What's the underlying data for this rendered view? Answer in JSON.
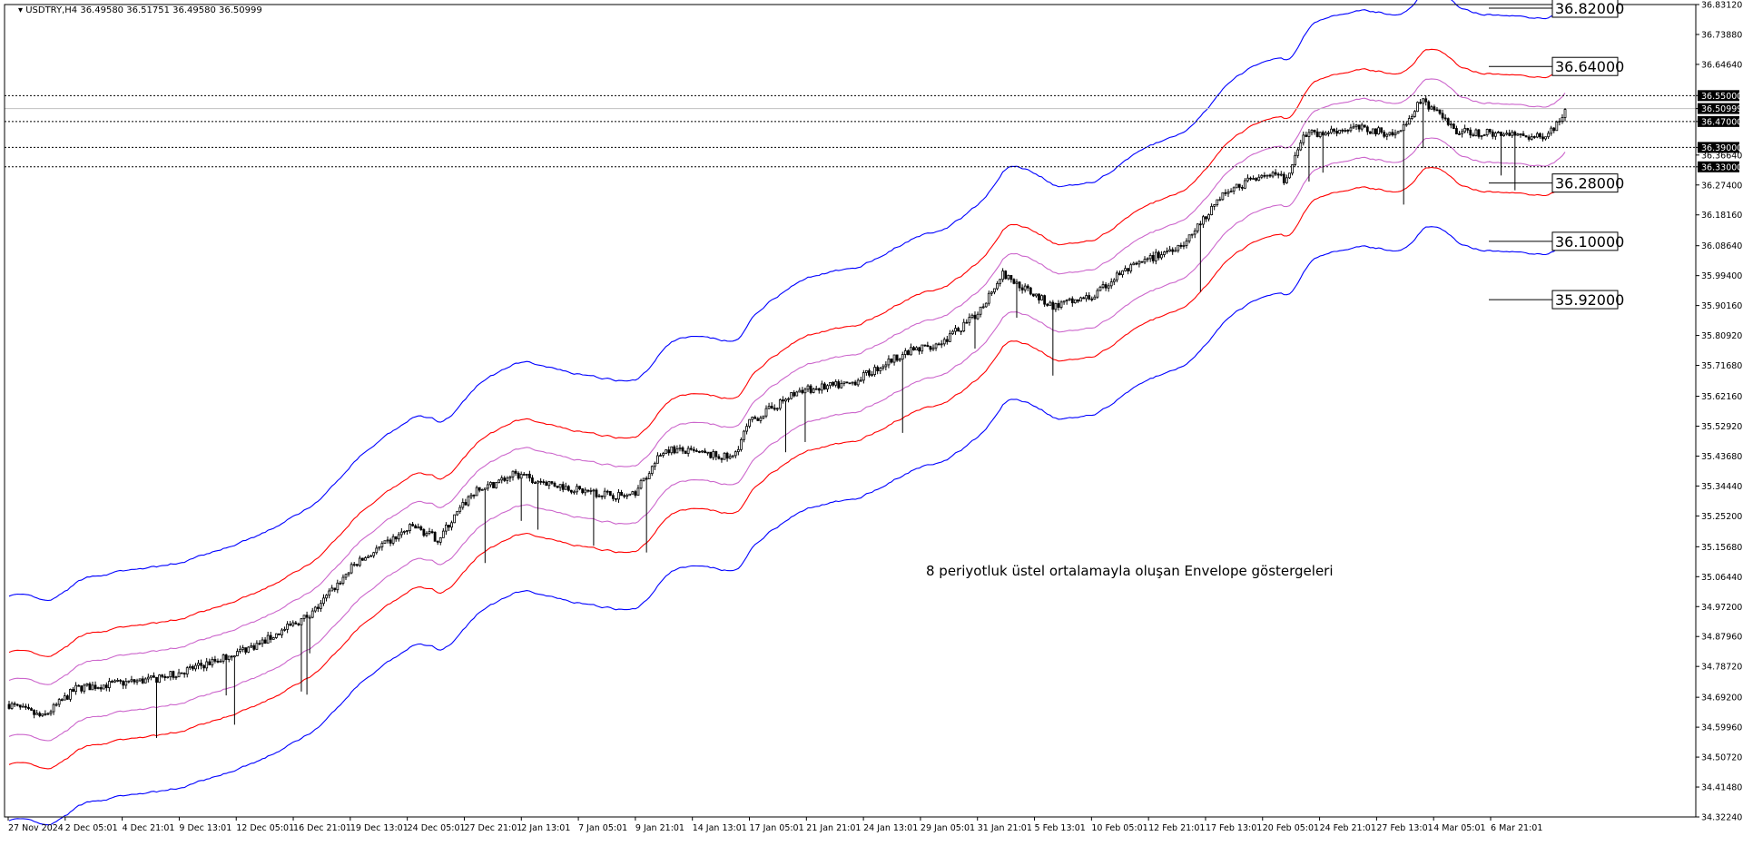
{
  "header": {
    "symbol": "USDTRY,H4",
    "open": "36.49580",
    "high": "36.51751",
    "low": "36.49580",
    "close": "36.50999"
  },
  "annotation": "8 periyotluk üstel ortalamayla oluşan Envelope göstergeleri",
  "chart_data": {
    "type": "candlestick",
    "symbol": "USDTRY",
    "timeframe": "H4",
    "ylim": [
      34.3224,
      36.8312
    ],
    "y_ticks": [
      "36.83120",
      "36.73880",
      "36.64640",
      "36.55000",
      "36.50999",
      "36.47000",
      "36.39000",
      "36.36640",
      "36.33000",
      "36.27400",
      "36.18160",
      "36.08640",
      "35.99400",
      "35.90160",
      "35.80920",
      "35.71680",
      "35.62160",
      "35.52920",
      "35.43680",
      "35.34440",
      "35.25200",
      "35.15680",
      "35.06440",
      "34.97200",
      "34.87960",
      "34.78720",
      "34.69200",
      "34.59960",
      "34.50720",
      "34.41480",
      "34.32240"
    ],
    "x_ticks": [
      "27 Nov 2024",
      "2 Dec 05:01",
      "4 Dec 21:01",
      "9 Dec 13:01",
      "12 Dec 05:01",
      "16 Dec 21:01",
      "19 Dec 13:01",
      "24 Dec 05:01",
      "27 Dec 21:01",
      "2 Jan 13:01",
      "7 Jan 05:01",
      "9 Jan 21:01",
      "14 Jan 13:01",
      "17 Jan 05:01",
      "21 Jan 21:01",
      "24 Jan 13:01",
      "29 Jan 05:01",
      "31 Jan 21:01",
      "5 Feb 13:01",
      "10 Feb 05:01",
      "12 Feb 21:01",
      "17 Feb 13:01",
      "20 Feb 05:01",
      "24 Feb 21:01",
      "27 Feb 13:01",
      "4 Mar 05:01",
      "6 Mar 21:01"
    ],
    "price_trend": [
      [
        0,
        34.67
      ],
      [
        0.02,
        34.63
      ],
      [
        0.04,
        34.72
      ],
      [
        0.09,
        34.75
      ],
      [
        0.12,
        34.8
      ],
      [
        0.15,
        34.86
      ],
      [
        0.18,
        34.95
      ],
      [
        0.205,
        35.1
      ],
      [
        0.24,
        35.22
      ],
      [
        0.255,
        35.18
      ],
      [
        0.275,
        35.32
      ],
      [
        0.3,
        35.38
      ],
      [
        0.34,
        35.33
      ],
      [
        0.37,
        35.31
      ],
      [
        0.39,
        35.46
      ],
      [
        0.43,
        35.43
      ],
      [
        0.44,
        35.54
      ],
      [
        0.47,
        35.64
      ],
      [
        0.5,
        35.66
      ],
      [
        0.53,
        35.75
      ],
      [
        0.555,
        35.79
      ],
      [
        0.575,
        35.87
      ],
      [
        0.59,
        36.0
      ],
      [
        0.62,
        35.9
      ],
      [
        0.645,
        35.93
      ],
      [
        0.66,
        36.0
      ],
      [
        0.7,
        36.1
      ],
      [
        0.72,
        36.24
      ],
      [
        0.745,
        36.31
      ],
      [
        0.76,
        36.29
      ],
      [
        0.77,
        36.43
      ],
      [
        0.8,
        36.45
      ],
      [
        0.825,
        36.43
      ],
      [
        0.84,
        36.54
      ],
      [
        0.86,
        36.44
      ],
      [
        0.89,
        36.43
      ],
      [
        0.91,
        36.42
      ],
      [
        0.92,
        36.46
      ],
      [
        0.925,
        36.51
      ]
    ],
    "envelopes": [
      {
        "color": "#ff0000",
        "offset": 0.5,
        "period": 8,
        "method": "EMA"
      },
      {
        "color": "#0000ff",
        "offset": 1.0,
        "period": 8,
        "method": "EMA"
      },
      {
        "color": "#cc66cc",
        "offset": 0.25,
        "period": 8,
        "method": "EMA"
      }
    ],
    "levels": [
      {
        "value": 36.82,
        "label": "36.82000"
      },
      {
        "value": 36.64,
        "label": "36.64000"
      },
      {
        "value": 36.28,
        "label": "36.28000"
      },
      {
        "value": 36.1,
        "label": "36.10000"
      },
      {
        "value": 35.92,
        "label": "35.92000"
      }
    ],
    "dotted_levels": [
      {
        "value": 36.55,
        "label": "36.55000"
      },
      {
        "value": 36.47,
        "label": "36.47000"
      },
      {
        "value": 36.39,
        "label": "36.39000"
      },
      {
        "value": 36.33,
        "label": "36.33000"
      }
    ],
    "current_price": {
      "value": 36.50999,
      "label": "36.50999"
    }
  },
  "colors": {
    "candle": "#000000",
    "axis_highlight": "#000000",
    "background": "#ffffff"
  }
}
